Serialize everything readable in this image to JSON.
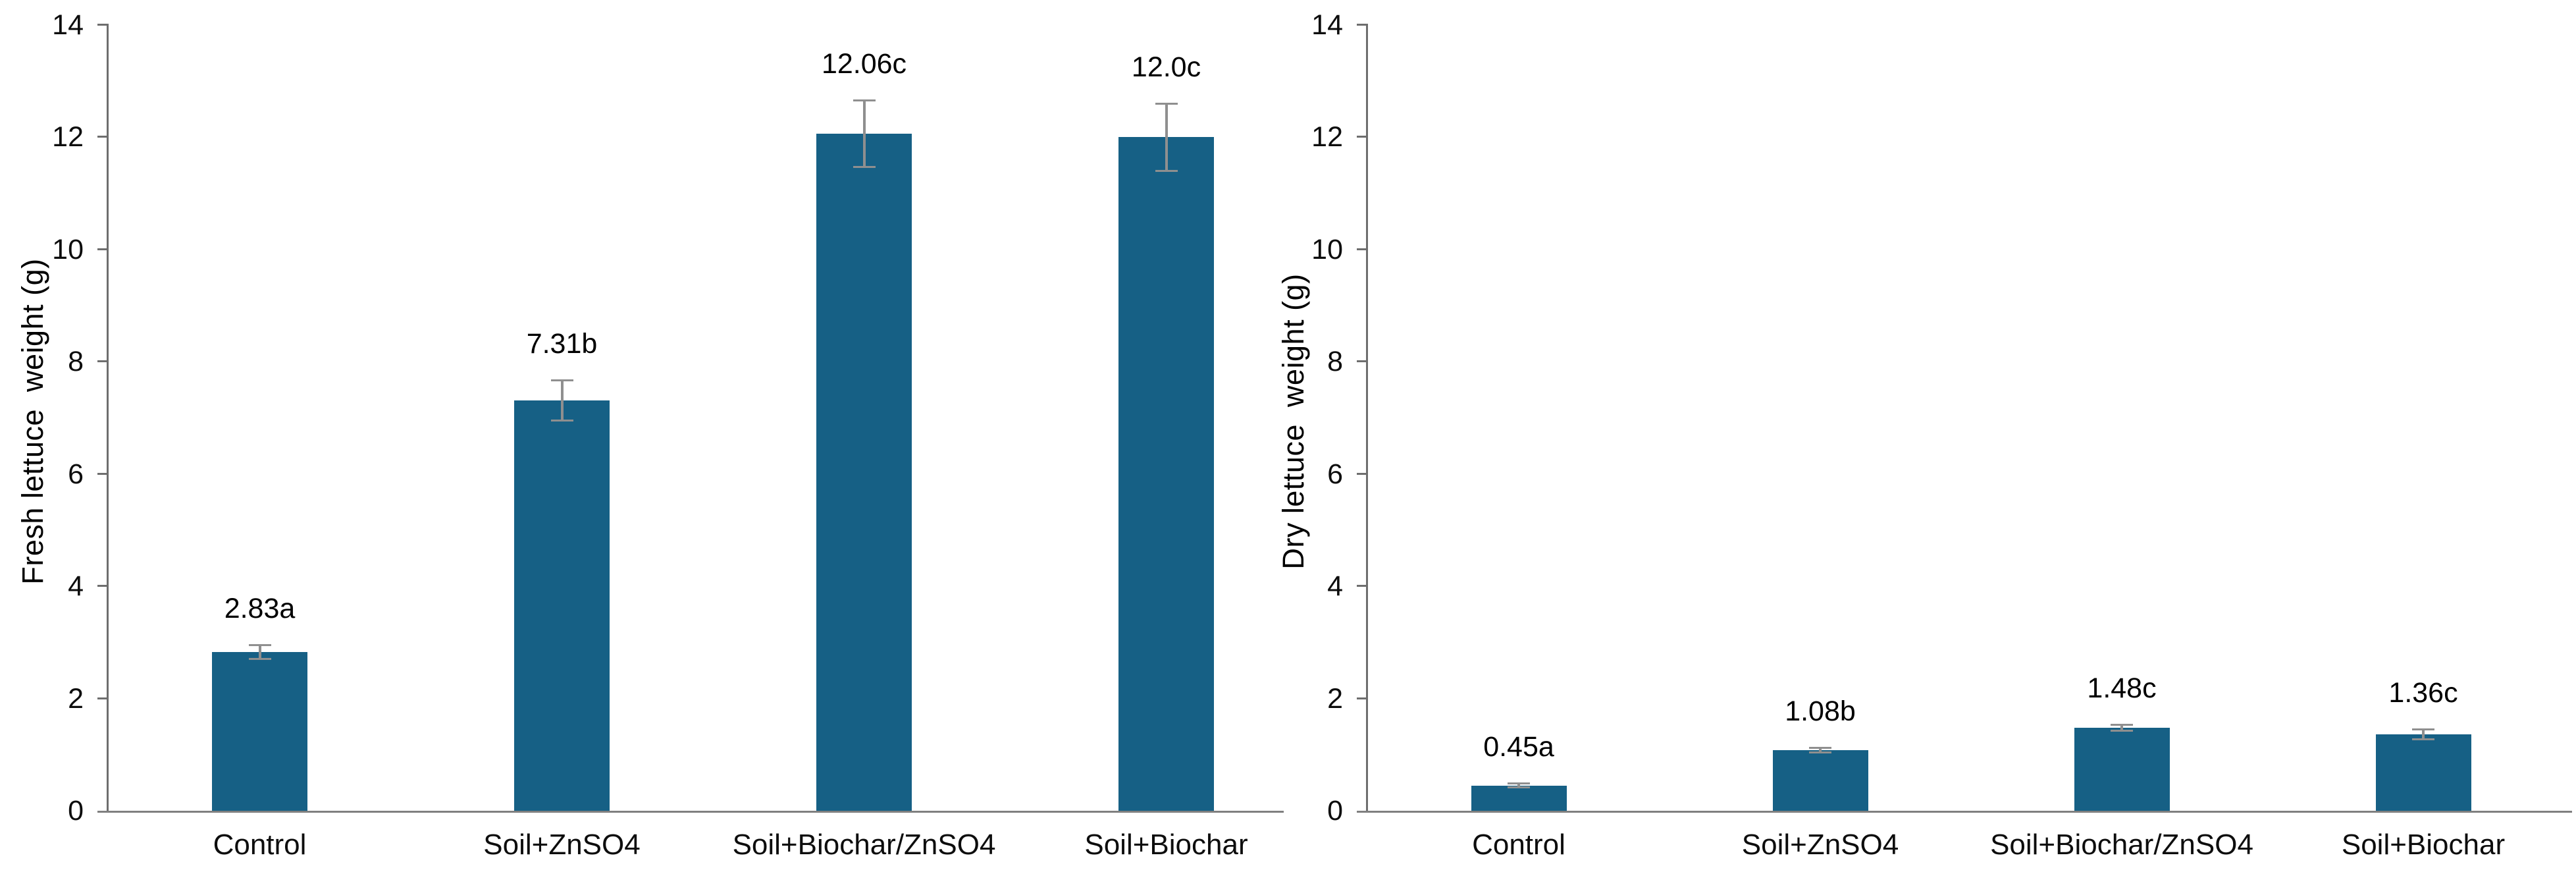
{
  "figure": {
    "background": "#ffffff",
    "description_colors": {
      "bar_fill": "#166085",
      "y_axis_line": "#6e6e6e",
      "x_axis_line": "#808080",
      "error_bar": "#8f8f8f",
      "text": "#000000"
    }
  },
  "chart_data": [
    {
      "type": "bar",
      "panel": "left",
      "title": "",
      "xlabel": "",
      "ylabel": "Fresh lettuce  weight (g)",
      "categories": [
        "Control",
        "Soil+ZnSO4",
        "Soil+Biochar/ZnSO4",
        "Soil+Biochar"
      ],
      "values": [
        2.83,
        7.31,
        12.06,
        12.0
      ],
      "value_labels": [
        "2.83a",
        "7.31b",
        "12.06c",
        "12.0c"
      ],
      "errors": [
        0.13,
        0.36,
        0.6,
        0.6
      ],
      "ylim": [
        0,
        14
      ],
      "yticks": [
        0,
        2,
        4,
        6,
        8,
        10,
        12,
        14
      ],
      "grid": false,
      "legend": false,
      "bar_color": "#166085"
    },
    {
      "type": "bar",
      "panel": "right",
      "title": "",
      "xlabel": "",
      "ylabel": "Dry lettuce  weight (g)",
      "categories": [
        "Control",
        "Soil+ZnSO4",
        "Soil+Biochar/ZnSO4",
        "Soil+Biochar"
      ],
      "values": [
        0.45,
        1.08,
        1.48,
        1.36
      ],
      "value_labels": [
        "0.45a",
        "1.08b",
        "1.48c",
        "1.36c"
      ],
      "errors": [
        0.04,
        0.05,
        0.06,
        0.09
      ],
      "ylim": [
        0,
        14
      ],
      "yticks": [
        0,
        2,
        4,
        6,
        8,
        10,
        12,
        14
      ],
      "grid": false,
      "legend": false,
      "bar_color": "#166085"
    }
  ]
}
